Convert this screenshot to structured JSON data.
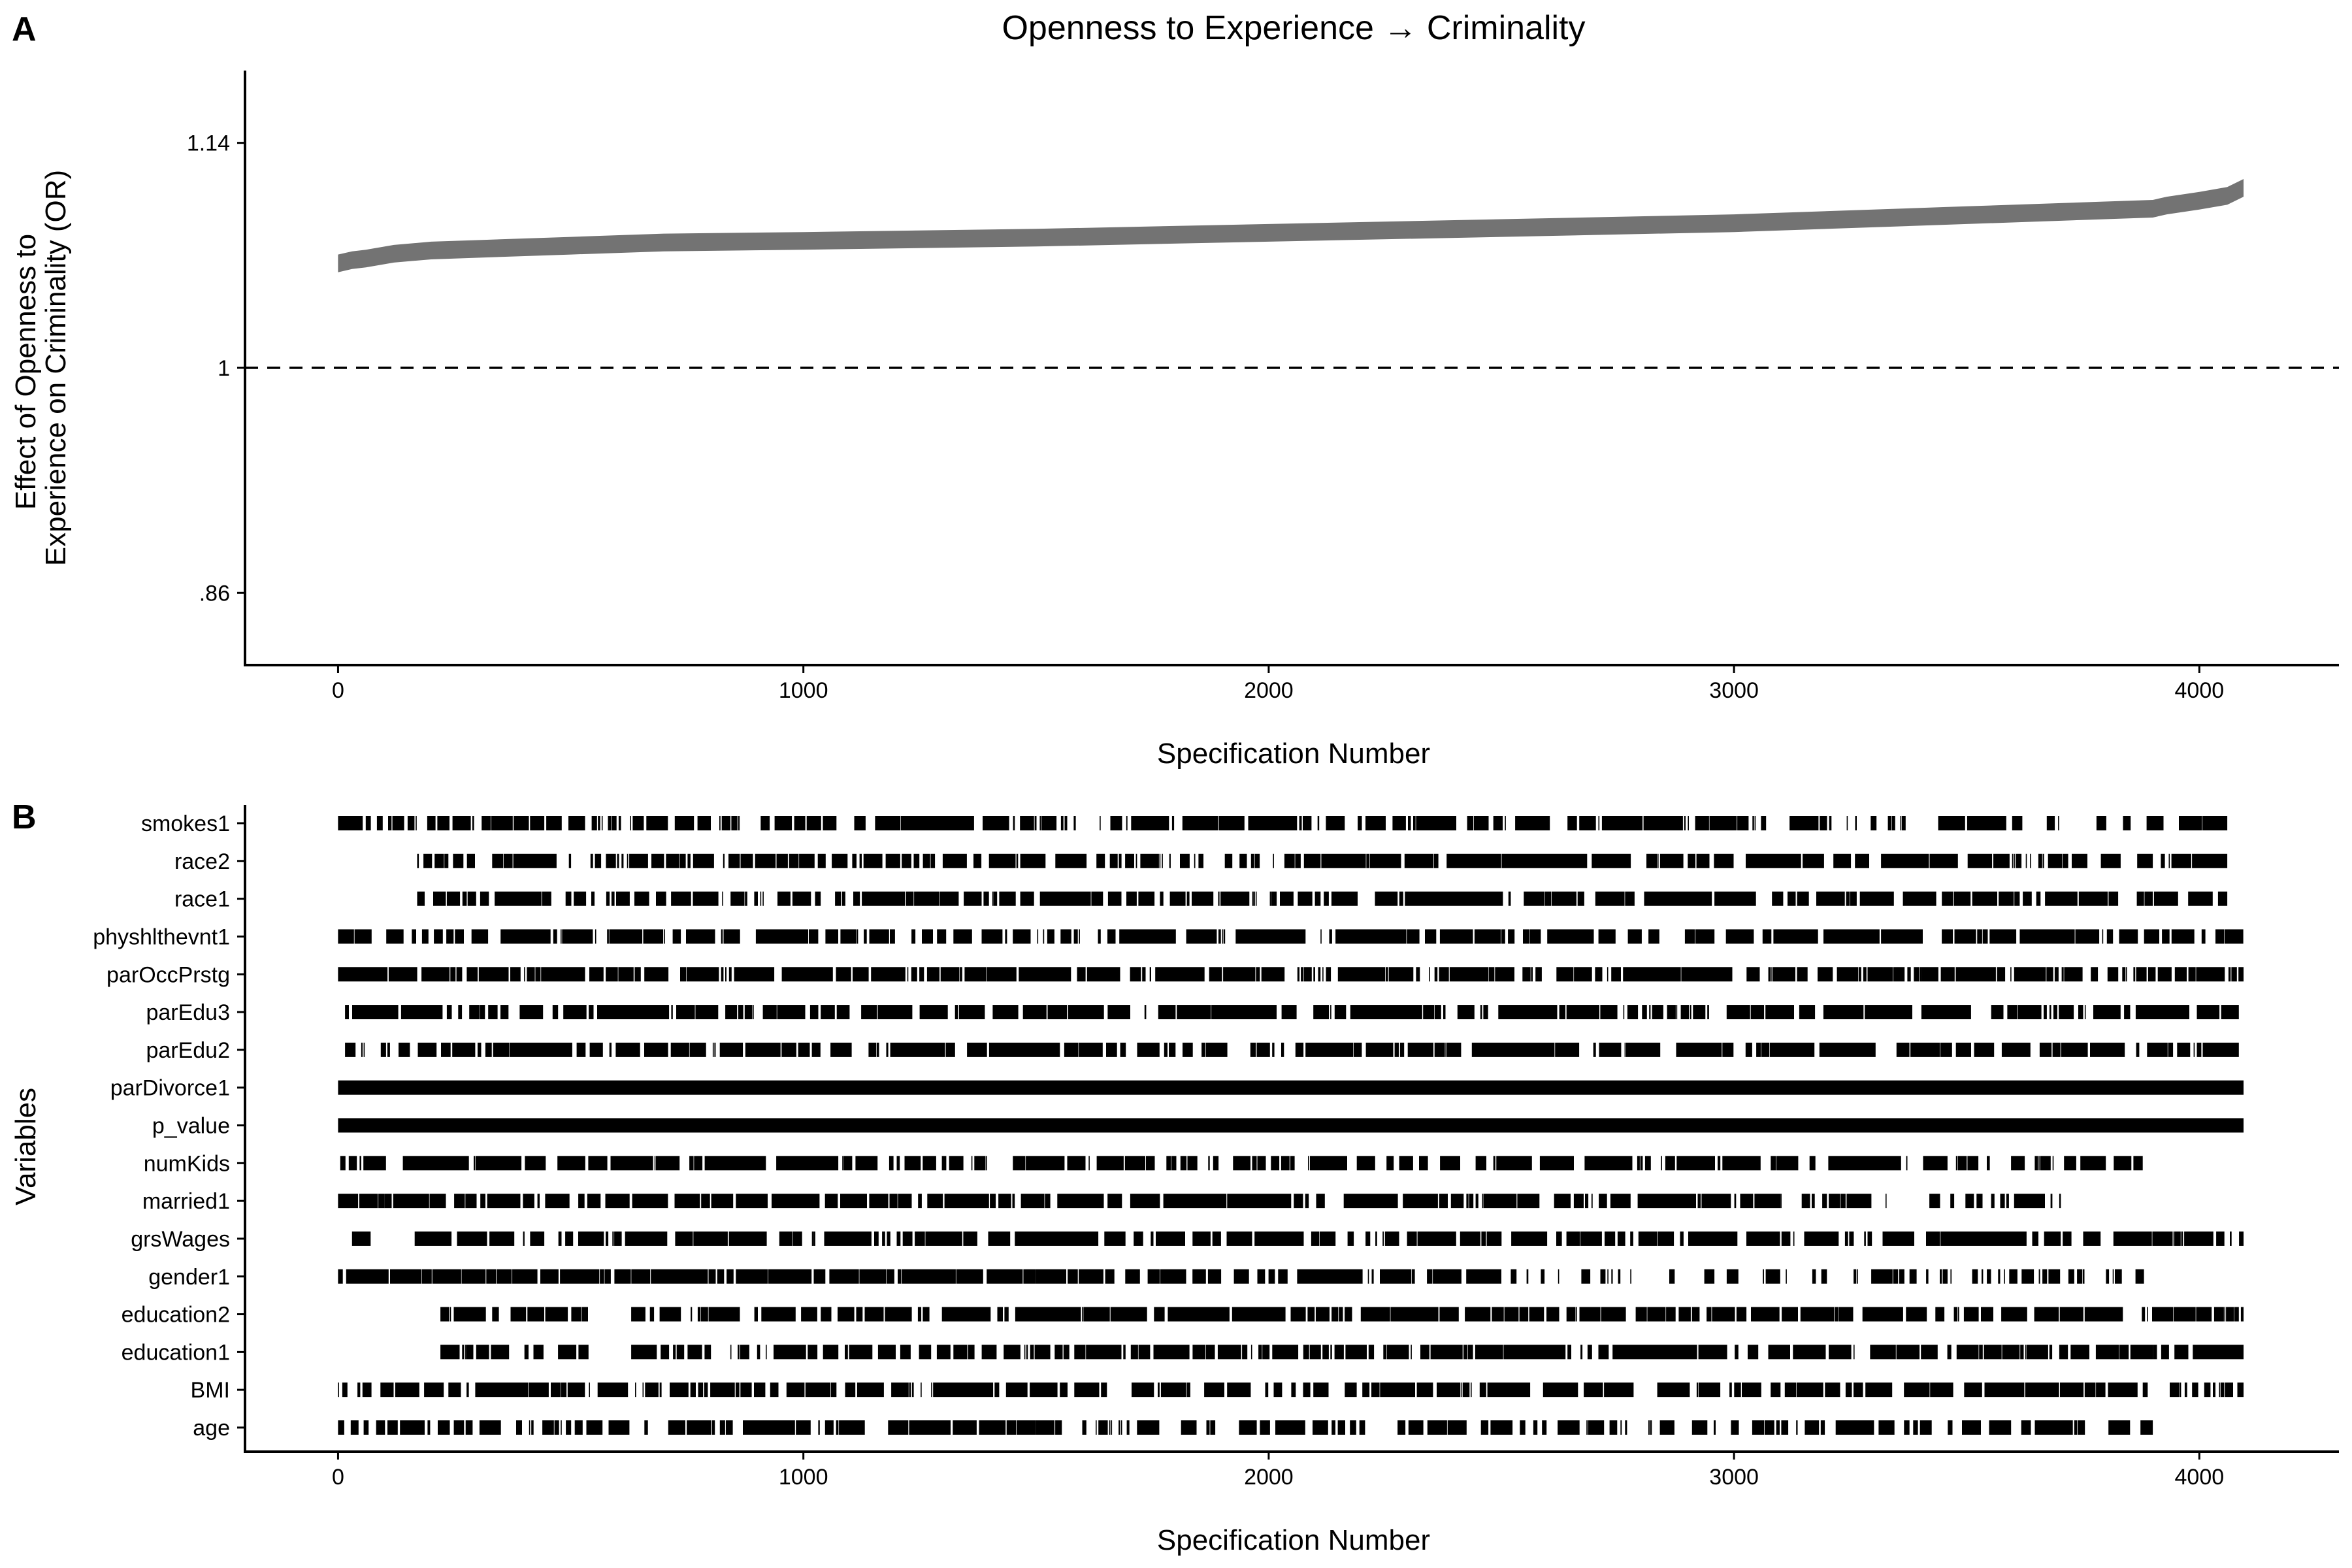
{
  "chart_data": [
    {
      "panel": "A",
      "type": "line",
      "title": "Openness to Experience → Criminality",
      "xlabel": "Specification Number",
      "ylabel_lines": [
        "Effect of Openness to",
        "Experience on Criminality (OR)"
      ],
      "xlim": [
        -200,
        4300
      ],
      "ylim": [
        0.815,
        1.185
      ],
      "x_ticks": [
        0,
        1000,
        2000,
        3000,
        4000
      ],
      "x_tick_labels": [
        "0",
        "1000",
        "2000",
        "3000",
        "4000"
      ],
      "y_ticks": [
        0.86,
        1,
        1.14
      ],
      "y_tick_labels": [
        ".86",
        "1",
        "1.14"
      ],
      "reference_line": {
        "y": 1,
        "style": "dashed"
      },
      "grid": false,
      "series": [
        {
          "band_color": "#737373",
          "x": [
            0,
            30,
            60,
            120,
            200,
            300,
            500,
            700,
            1000,
            1500,
            2000,
            2500,
            3000,
            3500,
            3900,
            3930,
            4000,
            4060,
            4095
          ],
          "y": [
            1.065,
            1.067,
            1.068,
            1.071,
            1.073,
            1.074,
            1.076,
            1.078,
            1.079,
            1.081,
            1.084,
            1.087,
            1.09,
            1.095,
            1.099,
            1.101,
            1.104,
            1.107,
            1.112
          ],
          "band_half_width": 0.0055
        }
      ]
    },
    {
      "panel": "B",
      "type": "heatmap",
      "xlabel": "Specification Number",
      "ylabel": "Variables",
      "xlim": [
        -200,
        4300
      ],
      "x_ticks": [
        0,
        1000,
        2000,
        3000,
        4000
      ],
      "x_tick_labels": [
        "0",
        "1000",
        "2000",
        "3000",
        "4000"
      ],
      "mark_color": "#000000",
      "variables": [
        {
          "name": "smokes1",
          "segments": [
            [
              0,
              3200,
              0.7
            ],
            [
              3200,
              3800,
              0.3
            ],
            [
              3800,
              4060,
              0.45
            ]
          ]
        },
        {
          "name": "race2",
          "segments": [
            [
              170,
              3900,
              0.75
            ],
            [
              3900,
              4060,
              0.6
            ]
          ]
        },
        {
          "name": "race1",
          "segments": [
            [
              170,
              3900,
              0.75
            ],
            [
              3900,
              4060,
              0.6
            ]
          ]
        },
        {
          "name": "physhlthevnt1",
          "segments": [
            [
              0,
              4095,
              0.7
            ]
          ]
        },
        {
          "name": "parOccPrstg",
          "segments": [
            [
              0,
              4095,
              0.8
            ]
          ]
        },
        {
          "name": "parEdu3",
          "segments": [
            [
              15,
              4085,
              0.7
            ]
          ]
        },
        {
          "name": "parEdu2",
          "segments": [
            [
              15,
              4085,
              0.7
            ]
          ]
        },
        {
          "name": "parDivorce1",
          "segments": [
            [
              0,
              4095,
              1.0
            ]
          ]
        },
        {
          "name": "p_value",
          "segments": [
            [
              0,
              4095,
              1.0
            ]
          ]
        },
        {
          "name": "numKids",
          "segments": [
            [
              0,
              3500,
              0.7
            ],
            [
              3500,
              3800,
              0.35
            ],
            [
              3800,
              3930,
              0.5
            ]
          ]
        },
        {
          "name": "married1",
          "segments": [
            [
              0,
              100,
              0.95
            ],
            [
              100,
              3100,
              0.75
            ],
            [
              3100,
              3710,
              0.45
            ]
          ]
        },
        {
          "name": "grsWages",
          "segments": [
            [
              30,
              70,
              0.9
            ],
            [
              150,
              4095,
              0.7
            ]
          ]
        },
        {
          "name": "gender1",
          "segments": [
            [
              0,
              1500,
              0.97
            ],
            [
              1500,
              2500,
              0.75
            ],
            [
              2500,
              3900,
              0.2
            ]
          ]
        },
        {
          "name": "education2",
          "segments": [
            [
              220,
              540,
              0.6
            ],
            [
              630,
              3900,
              0.75
            ],
            [
              3900,
              4095,
              0.95
            ]
          ]
        },
        {
          "name": "education1",
          "segments": [
            [
              220,
              540,
              0.6
            ],
            [
              630,
              3900,
              0.75
            ],
            [
              3900,
              4095,
              0.95
            ]
          ]
        },
        {
          "name": "BMI",
          "segments": [
            [
              0,
              4095,
              0.75
            ]
          ]
        },
        {
          "name": "age",
          "segments": [
            [
              0,
              1500,
              0.7
            ],
            [
              1500,
              3900,
              0.5
            ]
          ]
        }
      ]
    }
  ],
  "panels": {
    "a": {
      "letter": "A"
    },
    "b": {
      "letter": "B"
    }
  }
}
